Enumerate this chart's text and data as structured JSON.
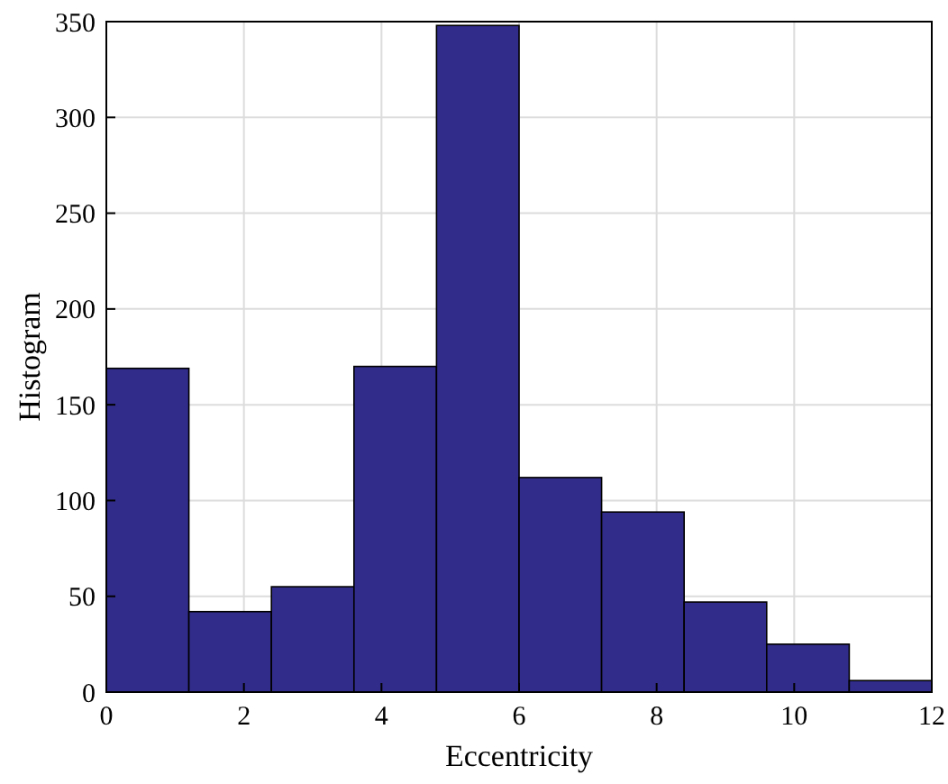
{
  "chart_data": {
    "type": "histogram",
    "xlabel": "Eccentricity",
    "ylabel": "Histogram",
    "bins": [
      0,
      1.2,
      2.4,
      3.6,
      4.8,
      6,
      7.2,
      8.4,
      9.6,
      10.8,
      12
    ],
    "values": [
      169,
      42,
      55,
      170,
      348,
      112,
      94,
      47,
      25,
      6
    ],
    "color": "#312c8a",
    "xlim": [
      0,
      12
    ],
    "xticks": [
      0,
      2,
      4,
      6,
      8,
      10,
      12
    ],
    "ylim": [
      0,
      350
    ],
    "yticks": [
      0,
      50,
      100,
      150,
      200,
      250,
      300,
      350
    ],
    "grid": true
  }
}
